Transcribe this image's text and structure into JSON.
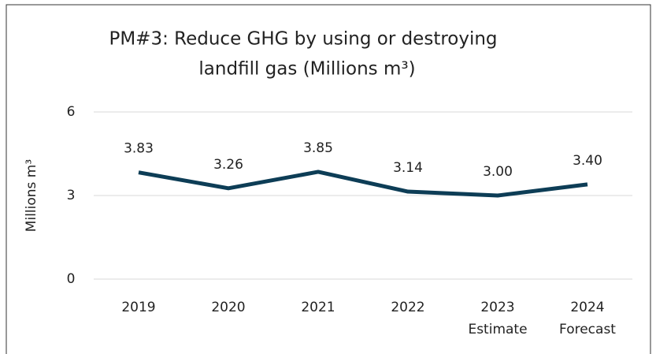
{
  "chart_data": {
    "type": "line",
    "title": [
      "PM#3: Reduce GHG by using or destroying",
      "landfill gas (Millions m³)"
    ],
    "y_label": "Millions m³",
    "categories": [
      [
        "2019"
      ],
      [
        "2020"
      ],
      [
        "2021"
      ],
      [
        "2022"
      ],
      [
        "2023",
        "Estimate"
      ],
      [
        "2024",
        "Forecast"
      ]
    ],
    "series": [
      {
        "name": "PM#3",
        "color": "#0d3d56",
        "values": [
          3.83,
          3.26,
          3.85,
          3.14,
          3.0,
          3.4
        ],
        "value_labels": [
          "3.83",
          "3.26",
          "3.85",
          "3.14",
          "3.00",
          "3.40"
        ]
      }
    ],
    "ylim": [
      0,
      6
    ],
    "yticks": [
      0,
      3,
      6
    ],
    "grid": true
  }
}
